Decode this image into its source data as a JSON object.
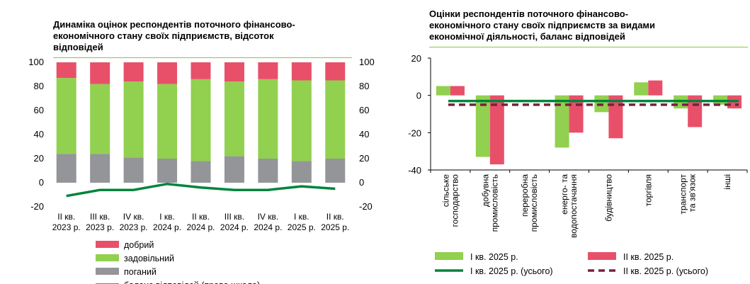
{
  "chart_data": [
    {
      "type": "bar",
      "subtype": "stacked-100 with line on secondary axis",
      "title": "Динаміка оцінок респондентів поточного  фінансово-\nекономічного стану своїх підприємств, відсоток\nвідповідей",
      "categories": [
        [
          "II кв.",
          "2023 р."
        ],
        [
          "III кв.",
          "2023 р."
        ],
        [
          "IV кв.",
          "2023 р."
        ],
        [
          "I кв.",
          "2024 р."
        ],
        [
          "II кв.",
          "2024 р."
        ],
        [
          "III кв.",
          "2024 р."
        ],
        [
          "IV кв.",
          "2024 р."
        ],
        [
          "I кв.",
          "2025 р."
        ],
        [
          "II кв.",
          "2025 р."
        ]
      ],
      "y_left": {
        "ticks": [
          "100",
          "80",
          "60",
          "40",
          "20",
          "0",
          "-20"
        ],
        "range": [
          -20,
          100
        ]
      },
      "y_right": {
        "ticks": [
          "100",
          "80",
          "60",
          "40",
          "20",
          "0",
          "-20"
        ],
        "range": [
          -20,
          100
        ]
      },
      "series": [
        {
          "name": "поганий",
          "color": "#939598",
          "values": [
            24,
            24,
            21,
            20,
            18,
            22,
            20,
            18,
            20
          ]
        },
        {
          "name": "задовільний",
          "color": "#92d050",
          "values": [
            63,
            58,
            63,
            62,
            68,
            62,
            66,
            67,
            65
          ]
        },
        {
          "name": "добрий",
          "color": "#e8506a",
          "values": [
            13,
            18,
            16,
            18,
            14,
            16,
            14,
            15,
            15
          ]
        },
        {
          "name": "баланс відповідей (права шкала)",
          "color": "#00843d",
          "kind": "line",
          "axis": "right",
          "values": [
            -11,
            -6,
            -6,
            -1,
            -4,
            -6,
            -6,
            -3,
            -5
          ]
        }
      ],
      "legend": {
        "position": "bottom-left",
        "items": [
          "добрий",
          "задовільний",
          "поганий",
          "баланс відповідей (права шкала)"
        ]
      }
    },
    {
      "type": "bar",
      "subtype": "clustered with horizontal reference lines",
      "title": "Оцінки респондентів поточного фінансово-\nекономічного стану своїх підприємств за видами\nекономічної діяльності, баланс відповідей",
      "categories": [
        [
          "сільське",
          "господарство"
        ],
        [
          "добувна",
          "промисловість"
        ],
        [
          "переробна",
          "промисловість"
        ],
        [
          "енерго- та",
          "водопостачання"
        ],
        [
          "будівництво"
        ],
        [
          "торгівля"
        ],
        [
          "транспорт",
          "та зв'язок"
        ],
        [
          "інші"
        ]
      ],
      "y_axis": {
        "ticks": [
          "20",
          "0",
          "-20",
          "-40"
        ],
        "range": [
          -40,
          20
        ]
      },
      "series": [
        {
          "name": "I кв. 2025 р.",
          "color": "#92d050",
          "values": [
            5,
            -33,
            0,
            -28,
            -9,
            7,
            -7,
            -5
          ]
        },
        {
          "name": "II кв. 2025 р.",
          "color": "#e8506a",
          "values": [
            5,
            -37,
            0,
            -20,
            -23,
            8,
            -17,
            -7
          ]
        },
        {
          "name": "I кв. 2025 р. (усього)",
          "color": "#00843d",
          "kind": "hline",
          "value": -3
        },
        {
          "name": "II кв. 2025 р. (усього)",
          "color": "#7a1f3d",
          "kind": "hline-dashed",
          "value": -5
        }
      ],
      "legend": {
        "position": "bottom",
        "items": [
          "I кв. 2025 р.",
          "II кв. 2025 р.",
          "I кв. 2025 р. (усього)",
          "II кв. 2025 р. (усього)"
        ]
      }
    }
  ]
}
